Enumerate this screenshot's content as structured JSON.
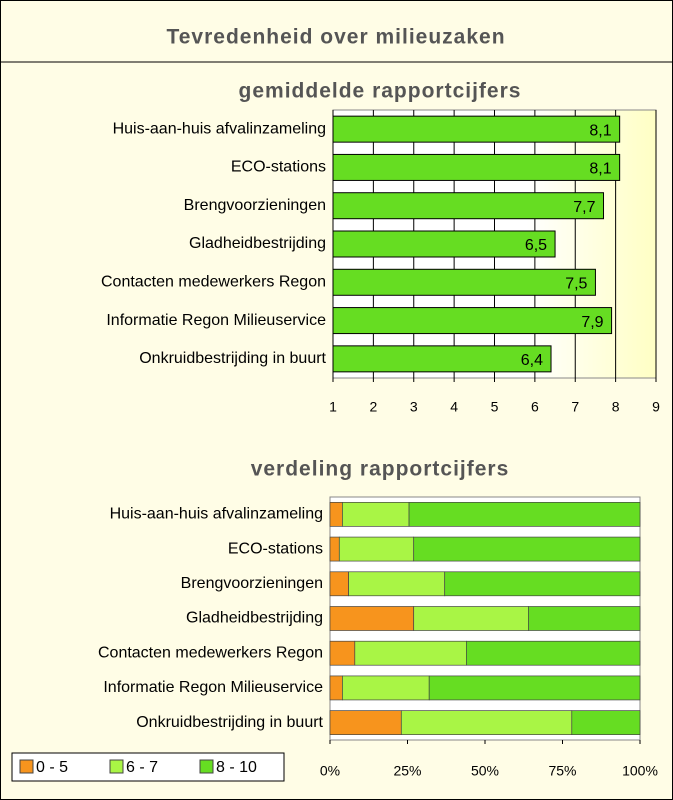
{
  "header": {
    "title": "Tevredenheid over milieuzaken"
  },
  "chart_data": [
    {
      "type": "bar",
      "title": "gemiddelde rapportcijfers",
      "categories": [
        "Huis-aan-huis afvalinzameling",
        "ECO-stations",
        "Brengvoorzieningen",
        "Gladheidbestrijding",
        "Contacten medewerkers Regon",
        "Informatie Regon Milieuservice",
        "Onkruidbestrijding in buurt"
      ],
      "values": [
        8.1,
        8.1,
        7.7,
        6.5,
        7.5,
        7.9,
        6.4
      ],
      "value_labels": [
        "8,1",
        "8,1",
        "7,7",
        "6,5",
        "7,5",
        "7,9",
        "6,4"
      ],
      "color": "#66dd22",
      "xlim": [
        1,
        9
      ],
      "xticks": [
        1,
        2,
        3,
        4,
        5,
        6,
        7,
        8,
        9
      ],
      "grid": true
    },
    {
      "type": "stacked_bar",
      "title": "verdeling rapportcijfers",
      "categories": [
        "Huis-aan-huis afvalinzameling",
        "ECO-stations",
        "Brengvoorzieningen",
        "Gladheidbestrijding",
        "Contacten medewerkers Regon",
        "Informatie Regon Milieuservice",
        "Onkruidbestrijding in buurt"
      ],
      "series": [
        {
          "name": "0 - 5",
          "color": "#f7941d",
          "values": [
            4,
            3,
            6,
            27,
            8,
            4,
            23
          ]
        },
        {
          "name": "6 - 7",
          "color": "#a9f545",
          "values": [
            21.5,
            24,
            31,
            37,
            36,
            28,
            55
          ]
        },
        {
          "name": "8 - 10",
          "color": "#66dd22",
          "values": [
            74.5,
            73,
            63,
            36,
            56,
            68,
            22
          ]
        }
      ],
      "xlim": [
        0,
        100
      ],
      "xticks": [
        {
          "value": 0,
          "label": "0%"
        },
        {
          "value": 25,
          "label": "25%"
        },
        {
          "value": 50,
          "label": "50%"
        },
        {
          "value": 75,
          "label": "75%"
        },
        {
          "value": 100,
          "label": "100%"
        }
      ],
      "grid": false,
      "legend": "bottom-left"
    }
  ]
}
